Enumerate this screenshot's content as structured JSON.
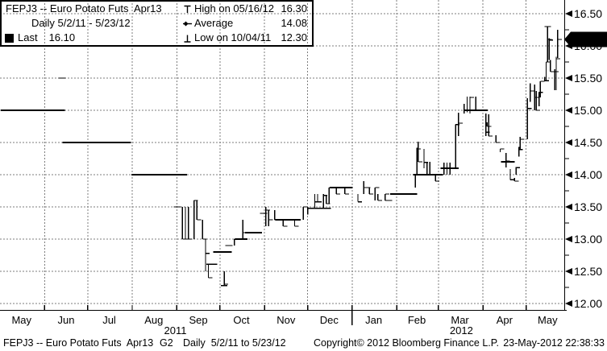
{
  "header": {
    "title": "FEPJ3 -- Euro Potato Futs  Apr13",
    "subtitle": "Daily 5/2/11 - 5/23/12",
    "last_label": "Last",
    "last_value": "16.10",
    "legend": [
      {
        "icon": "high-marker",
        "label": "High on 05/16/12",
        "value": "16.30"
      },
      {
        "icon": "average-marker",
        "label": "Average",
        "value": "14.08"
      },
      {
        "icon": "low-marker",
        "label": "Low on 10/04/11",
        "value": "12.30"
      }
    ]
  },
  "footer": {
    "security": "FEPJ3 -- Euro Potato Futs  Apr13",
    "page": "G2",
    "range": "Daily  5/2/11 to 5/23/12",
    "copyright": "Copyright© 2012 Bloomberg Finance L.P.",
    "timestamp": "23-May-2012 22:38:33"
  },
  "chart_data": {
    "type": "ohlc-daily-bar",
    "title": "FEPJ3 Euro Potato Futures Apr13",
    "period": {
      "start": "2011-05-02",
      "end": "2012-05-23"
    },
    "ylim": [
      12.0,
      16.5
    ],
    "y_ticks": [
      16.5,
      16.0,
      15.5,
      15.0,
      14.5,
      14.0,
      13.5,
      13.0,
      12.5,
      12.0
    ],
    "grid": true,
    "grid_color": "#7d7d7d",
    "bar_color": "#000000",
    "badge_bg": "#000000",
    "badge_fg": "#ffffff",
    "last": {
      "date": "2012-05-23",
      "value": 16.1
    },
    "high": {
      "date": "2012-05-16",
      "value": 16.3,
      "label_date": "05/16/12"
    },
    "low": {
      "date": "2011-10-04",
      "value": 12.3,
      "label_date": "10/04/11"
    },
    "average": 14.08,
    "x_months": [
      {
        "label": "May",
        "mid": "2011-05-16"
      },
      {
        "label": "Jun",
        "mid": "2011-06-16"
      },
      {
        "label": "Jul",
        "mid": "2011-07-16"
      },
      {
        "label": "Aug",
        "mid": "2011-08-16"
      },
      {
        "label": "Sep",
        "mid": "2011-09-16"
      },
      {
        "label": "Oct",
        "mid": "2011-10-16"
      },
      {
        "label": "Nov",
        "mid": "2011-11-16"
      },
      {
        "label": "Dec",
        "mid": "2011-12-16"
      },
      {
        "label": "Jan",
        "mid": "2012-01-16"
      },
      {
        "label": "Feb",
        "mid": "2012-02-15"
      },
      {
        "label": "Mar",
        "mid": "2012-03-16"
      },
      {
        "label": "Apr",
        "mid": "2012-04-16"
      },
      {
        "label": "May",
        "mid": "2012-05-16"
      }
    ],
    "years": [
      {
        "label": "2011",
        "center": "2011-08-31"
      },
      {
        "label": "2012",
        "center": "2012-03-17"
      }
    ],
    "flat_segments": [
      [
        "2011-05-02",
        "2011-06-13",
        15.0
      ],
      [
        "2011-06-14",
        "2011-07-29",
        14.5
      ],
      [
        "2011-08-01",
        "2011-09-06",
        14.0
      ],
      [
        "2011-09-22",
        "2011-09-27",
        12.61
      ],
      [
        "2011-09-27",
        "2011-10-07",
        12.8
      ],
      [
        "2011-10-12",
        "2011-10-18",
        13.0
      ],
      [
        "2011-10-19",
        "2011-10-28",
        13.1
      ],
      [
        "2011-11-09",
        "2011-11-24",
        13.3
      ],
      [
        "2011-12-02",
        "2011-12-15",
        13.48
      ],
      [
        "2011-12-17",
        "2011-12-30",
        13.8
      ],
      [
        "2012-01-28",
        "2012-02-13",
        13.7
      ],
      [
        "2012-02-13",
        "2012-03-02",
        14.0
      ],
      [
        "2012-03-03",
        "2012-03-13",
        14.1
      ],
      [
        "2012-03-20",
        "2012-04-02",
        15.0
      ],
      [
        "2012-04-14",
        "2012-04-21",
        14.2
      ]
    ],
    "bars": [
      [
        "2011-06-13",
        15.5,
        15.5,
        null
      ],
      [
        "2011-09-01",
        13.5,
        13.5,
        null
      ],
      [
        "2011-09-05",
        13.5,
        13.0,
        13.0
      ],
      [
        "2011-09-07",
        13.5,
        13.0,
        13.0
      ],
      [
        "2011-09-09",
        13.5,
        13.0,
        13.0
      ],
      [
        "2011-09-13",
        13.6,
        13.0,
        13.6
      ],
      [
        "2011-09-15",
        13.6,
        13.3,
        13.3
      ],
      [
        "2011-09-19",
        13.3,
        13.0,
        13.0
      ],
      [
        "2011-09-21",
        13.0,
        12.5,
        12.78
      ],
      [
        "2011-09-23",
        12.61,
        12.4,
        12.4
      ],
      [
        "2011-10-04",
        12.5,
        12.28,
        12.3
      ],
      [
        "2011-10-07",
        12.9,
        12.9,
        null
      ],
      [
        "2011-10-11",
        13.0,
        12.9,
        13.0
      ],
      [
        "2011-10-17",
        13.3,
        13.0,
        13.1
      ],
      [
        "2011-10-31",
        13.4,
        13.4,
        null
      ],
      [
        "2011-11-02",
        13.5,
        13.2,
        13.45
      ],
      [
        "2011-11-04",
        13.45,
        13.2,
        13.3
      ],
      [
        "2011-11-08",
        13.45,
        13.3,
        13.3
      ],
      [
        "2011-11-14",
        13.3,
        13.2,
        13.2
      ],
      [
        "2011-11-22",
        13.3,
        13.2,
        13.2
      ],
      [
        "2011-11-28",
        13.5,
        13.3,
        13.5
      ],
      [
        "2011-12-01",
        13.5,
        13.38,
        13.48
      ],
      [
        "2011-12-06",
        13.7,
        13.48,
        13.58
      ],
      [
        "2011-12-08",
        13.7,
        13.58,
        13.58
      ],
      [
        "2011-12-12",
        13.7,
        13.48,
        13.68
      ],
      [
        "2011-12-14",
        13.68,
        13.55,
        13.55
      ],
      [
        "2011-12-16",
        13.8,
        13.55,
        13.8
      ],
      [
        "2011-12-21",
        13.8,
        13.7,
        13.7
      ],
      [
        "2011-12-27",
        13.8,
        13.7,
        13.7
      ],
      [
        "2012-01-05",
        13.7,
        13.58,
        13.58
      ],
      [
        "2012-01-09",
        13.9,
        13.7,
        13.8
      ],
      [
        "2012-01-11",
        13.8,
        13.8,
        null
      ],
      [
        "2012-01-13",
        13.8,
        13.7,
        13.7
      ],
      [
        "2012-01-17",
        13.8,
        13.6,
        13.8
      ],
      [
        "2012-01-19",
        13.7,
        13.6,
        13.6
      ],
      [
        "2012-01-24",
        13.7,
        13.6,
        13.7
      ],
      [
        "2012-01-26",
        13.6,
        13.6,
        null
      ],
      [
        "2012-02-14",
        14.0,
        13.8,
        14.0
      ],
      [
        "2012-02-15",
        14.42,
        13.99,
        14.4
      ],
      [
        "2012-02-16",
        14.51,
        14.2,
        14.2
      ],
      [
        "2012-02-20",
        14.4,
        14.1,
        14.19
      ],
      [
        "2012-02-22",
        14.2,
        14.0,
        14.0
      ],
      [
        "2012-02-24",
        14.2,
        14.0,
        14.0
      ],
      [
        "2012-02-28",
        14.0,
        13.9,
        13.9
      ],
      [
        "2012-03-05",
        14.19,
        14.0,
        14.1
      ],
      [
        "2012-03-07",
        14.19,
        14.0,
        14.1
      ],
      [
        "2012-03-09",
        14.19,
        14.0,
        14.1
      ],
      [
        "2012-03-13",
        14.78,
        14.1,
        14.78
      ],
      [
        "2012-03-15",
        14.96,
        14.6,
        14.8
      ],
      [
        "2012-03-19",
        15.1,
        14.95,
        15.0
      ],
      [
        "2012-03-21",
        15.21,
        14.97,
        15.0
      ],
      [
        "2012-03-23",
        15.21,
        14.95,
        15.2
      ],
      [
        "2012-03-27",
        15.21,
        15.0,
        15.0
      ],
      [
        "2012-04-03",
        14.95,
        14.6,
        14.66
      ],
      [
        "2012-04-04",
        14.81,
        14.75,
        14.75
      ],
      [
        "2012-04-05",
        14.94,
        14.6,
        14.6
      ],
      [
        "2012-04-10",
        14.61,
        14.5,
        14.5
      ],
      [
        "2012-04-13",
        14.4,
        14.35,
        14.4
      ],
      [
        "2012-04-17",
        14.34,
        14.11,
        14.21
      ],
      [
        "2012-04-20",
        14.09,
        13.92,
        13.92
      ],
      [
        "2012-04-23",
        13.95,
        13.9,
        13.9
      ],
      [
        "2012-04-24",
        14.12,
        14.0,
        14.11
      ],
      [
        "2012-04-26",
        14.43,
        14.28,
        14.39
      ],
      [
        "2012-04-27",
        14.59,
        14.4,
        14.55
      ],
      [
        "2012-05-02",
        15.19,
        14.55,
        15.03
      ],
      [
        "2012-05-04",
        15.42,
        15.13,
        15.3
      ],
      [
        "2012-05-07",
        15.4,
        15.0,
        15.2
      ],
      [
        "2012-05-08",
        15.3,
        15.0,
        15.0
      ],
      [
        "2012-05-10",
        15.28,
        15.06,
        15.28
      ],
      [
        "2012-05-11",
        15.45,
        15.2,
        15.45
      ],
      [
        "2012-05-14",
        15.52,
        15.45,
        15.46
      ],
      [
        "2012-05-15",
        15.75,
        15.45,
        15.75
      ],
      [
        "2012-05-16",
        16.3,
        15.75,
        16.1
      ],
      [
        "2012-05-17",
        16.12,
        15.78,
        16.09
      ],
      [
        "2012-05-18",
        15.78,
        15.6,
        15.6
      ],
      [
        "2012-05-21",
        15.64,
        15.31,
        15.6
      ],
      [
        "2012-05-22",
        15.83,
        15.31,
        15.8
      ],
      [
        "2012-05-23",
        16.25,
        15.81,
        16.1
      ]
    ]
  }
}
